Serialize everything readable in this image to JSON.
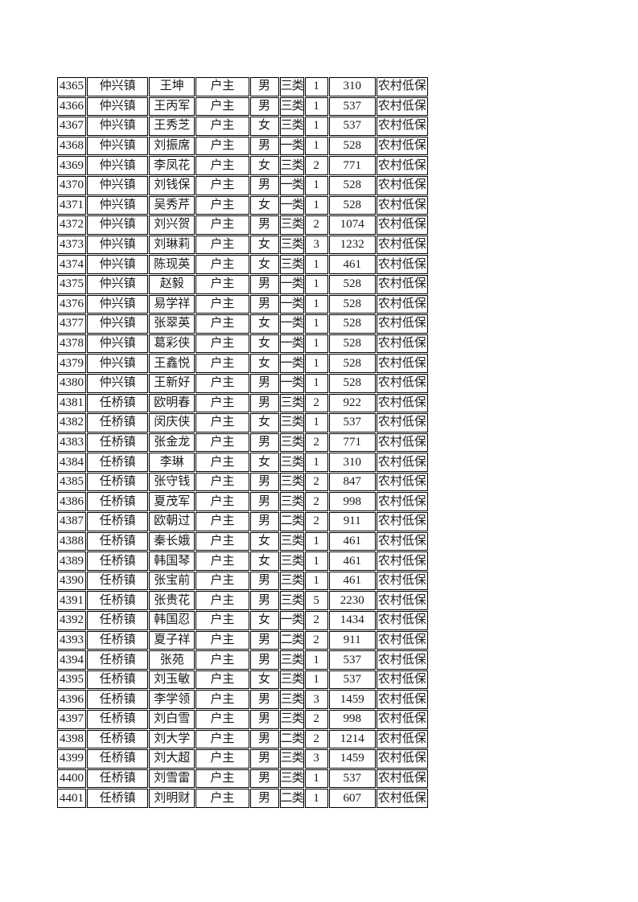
{
  "colors": {
    "page_background": "#ffffff",
    "cell_border": "#000000",
    "text": "#1a1a1a"
  },
  "table": {
    "column_keys": [
      "serial",
      "town",
      "name",
      "relation",
      "gender",
      "category",
      "persons",
      "amount",
      "program"
    ],
    "rows": [
      [
        "4365",
        "仲兴镇",
        "王坤",
        "户主",
        "男",
        "三类",
        "1",
        "310",
        "农村低保"
      ],
      [
        "4366",
        "仲兴镇",
        "王丙军",
        "户主",
        "男",
        "三类",
        "1",
        "537",
        "农村低保"
      ],
      [
        "4367",
        "仲兴镇",
        "王秀芝",
        "户主",
        "女",
        "三类",
        "1",
        "537",
        "农村低保"
      ],
      [
        "4368",
        "仲兴镇",
        "刘振席",
        "户主",
        "男",
        "一类",
        "1",
        "528",
        "农村低保"
      ],
      [
        "4369",
        "仲兴镇",
        "李凤花",
        "户主",
        "女",
        "三类",
        "2",
        "771",
        "农村低保"
      ],
      [
        "4370",
        "仲兴镇",
        "刘钱保",
        "户主",
        "男",
        "一类",
        "1",
        "528",
        "农村低保"
      ],
      [
        "4371",
        "仲兴镇",
        "吴秀芹",
        "户主",
        "女",
        "一类",
        "1",
        "528",
        "农村低保"
      ],
      [
        "4372",
        "仲兴镇",
        "刘兴贺",
        "户主",
        "男",
        "三类",
        "2",
        "1074",
        "农村低保"
      ],
      [
        "4373",
        "仲兴镇",
        "刘琳莉",
        "户主",
        "女",
        "三类",
        "3",
        "1232",
        "农村低保"
      ],
      [
        "4374",
        "仲兴镇",
        "陈现英",
        "户主",
        "女",
        "三类",
        "1",
        "461",
        "农村低保"
      ],
      [
        "4375",
        "仲兴镇",
        "赵毅",
        "户主",
        "男",
        "一类",
        "1",
        "528",
        "农村低保"
      ],
      [
        "4376",
        "仲兴镇",
        "易学祥",
        "户主",
        "男",
        "一类",
        "1",
        "528",
        "农村低保"
      ],
      [
        "4377",
        "仲兴镇",
        "张翠英",
        "户主",
        "女",
        "一类",
        "1",
        "528",
        "农村低保"
      ],
      [
        "4378",
        "仲兴镇",
        "葛彩侠",
        "户主",
        "女",
        "一类",
        "1",
        "528",
        "农村低保"
      ],
      [
        "4379",
        "仲兴镇",
        "王鑫悦",
        "户主",
        "女",
        "一类",
        "1",
        "528",
        "农村低保"
      ],
      [
        "4380",
        "仲兴镇",
        "王新好",
        "户主",
        "男",
        "一类",
        "1",
        "528",
        "农村低保"
      ],
      [
        "4381",
        "任桥镇",
        "欧明春",
        "户主",
        "男",
        "三类",
        "2",
        "922",
        "农村低保"
      ],
      [
        "4382",
        "任桥镇",
        "闵庆侠",
        "户主",
        "女",
        "三类",
        "1",
        "537",
        "农村低保"
      ],
      [
        "4383",
        "任桥镇",
        "张金龙",
        "户主",
        "男",
        "三类",
        "2",
        "771",
        "农村低保"
      ],
      [
        "4384",
        "任桥镇",
        "李琳",
        "户主",
        "女",
        "三类",
        "1",
        "310",
        "农村低保"
      ],
      [
        "4385",
        "任桥镇",
        "张守钱",
        "户主",
        "男",
        "三类",
        "2",
        "847",
        "农村低保"
      ],
      [
        "4386",
        "任桥镇",
        "夏茂军",
        "户主",
        "男",
        "三类",
        "2",
        "998",
        "农村低保"
      ],
      [
        "4387",
        "任桥镇",
        "欧朝过",
        "户主",
        "男",
        "二类",
        "2",
        "911",
        "农村低保"
      ],
      [
        "4388",
        "任桥镇",
        "秦长娥",
        "户主",
        "女",
        "三类",
        "1",
        "461",
        "农村低保"
      ],
      [
        "4389",
        "任桥镇",
        "韩国琴",
        "户主",
        "女",
        "三类",
        "1",
        "461",
        "农村低保"
      ],
      [
        "4390",
        "任桥镇",
        "张宝前",
        "户主",
        "男",
        "三类",
        "1",
        "461",
        "农村低保"
      ],
      [
        "4391",
        "任桥镇",
        "张贵花",
        "户主",
        "男",
        "三类",
        "5",
        "2230",
        "农村低保"
      ],
      [
        "4392",
        "任桥镇",
        "韩国忍",
        "户主",
        "女",
        "一类",
        "2",
        "1434",
        "农村低保"
      ],
      [
        "4393",
        "任桥镇",
        "夏子祥",
        "户主",
        "男",
        "二类",
        "2",
        "911",
        "农村低保"
      ],
      [
        "4394",
        "任桥镇",
        "张苑",
        "户主",
        "男",
        "三类",
        "1",
        "537",
        "农村低保"
      ],
      [
        "4395",
        "任桥镇",
        "刘玉敏",
        "户主",
        "女",
        "三类",
        "1",
        "537",
        "农村低保"
      ],
      [
        "4396",
        "任桥镇",
        "李学领",
        "户主",
        "男",
        "三类",
        "3",
        "1459",
        "农村低保"
      ],
      [
        "4397",
        "任桥镇",
        "刘白雪",
        "户主",
        "男",
        "三类",
        "2",
        "998",
        "农村低保"
      ],
      [
        "4398",
        "任桥镇",
        "刘大学",
        "户主",
        "男",
        "二类",
        "2",
        "1214",
        "农村低保"
      ],
      [
        "4399",
        "任桥镇",
        "刘大超",
        "户主",
        "男",
        "三类",
        "3",
        "1459",
        "农村低保"
      ],
      [
        "4400",
        "任桥镇",
        "刘雪雷",
        "户主",
        "男",
        "三类",
        "1",
        "537",
        "农村低保"
      ],
      [
        "4401",
        "任桥镇",
        "刘明财",
        "户主",
        "男",
        "二类",
        "1",
        "607",
        "农村低保"
      ]
    ]
  }
}
